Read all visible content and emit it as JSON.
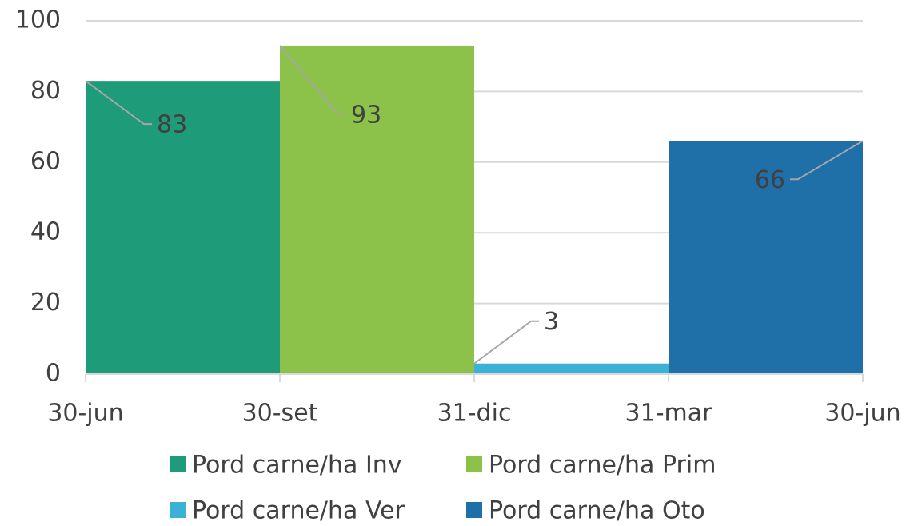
{
  "chart_data": {
    "type": "bar",
    "xticks": [
      "30-jun",
      "30-set",
      "31-dic",
      "31-mar",
      "30-jun"
    ],
    "series": [
      {
        "name": "Pord carne/ha Inv",
        "color": "#1e9b78",
        "values": [
          83,
          null,
          null,
          null
        ]
      },
      {
        "name": "Pord carne/ha Prim",
        "color": "#8cc24a",
        "values": [
          null,
          93,
          null,
          null
        ]
      },
      {
        "name": "Pord carne/ha Ver",
        "color": "#3bb1d6",
        "values": [
          null,
          null,
          3,
          null
        ]
      },
      {
        "name": "Pord carne/ha Oto",
        "color": "#1f6fa9",
        "values": [
          null,
          null,
          null,
          66
        ]
      }
    ],
    "ylim": [
      0,
      100
    ],
    "yticks": [
      0,
      20,
      40,
      60,
      80,
      100
    ],
    "grid": true,
    "legend": "bottom"
  }
}
